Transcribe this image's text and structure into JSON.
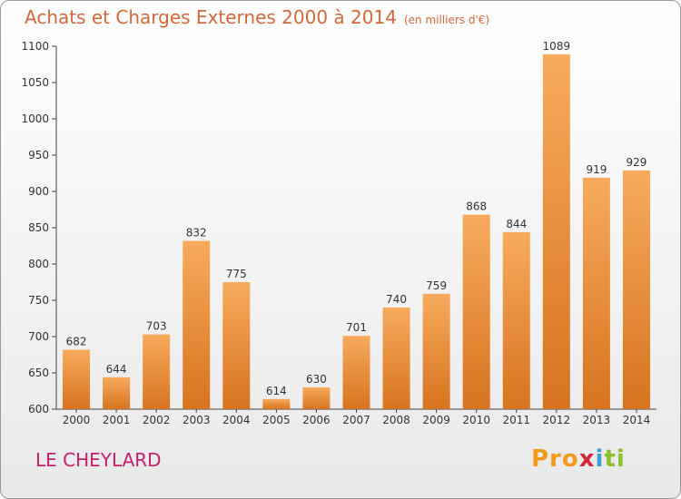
{
  "header": {
    "title": "Achats et Charges Externes 2000 à 2014",
    "unit": "(en milliers d'€)"
  },
  "footer": {
    "place": "LE CHEYLARD",
    "logo_text": "Proxiti",
    "logo_parts": [
      "Pro",
      "x",
      "i",
      "ti"
    ]
  },
  "colors": {
    "title": "#d2683a",
    "place": "#c4206b",
    "bar_light": "#f7ab5d",
    "bar_dark": "#d7731f"
  },
  "chart_data": {
    "type": "bar",
    "title": "Achats et Charges Externes 2000 à 2014",
    "subtitle": "(en milliers d'€)",
    "xlabel": "",
    "ylabel": "",
    "categories": [
      "2000",
      "2001",
      "2002",
      "2003",
      "2004",
      "2005",
      "2006",
      "2007",
      "2008",
      "2009",
      "2010",
      "2011",
      "2012",
      "2013",
      "2014"
    ],
    "values": [
      682,
      644,
      703,
      832,
      775,
      614,
      630,
      701,
      740,
      759,
      868,
      844,
      1089,
      919,
      929
    ],
    "ylim": [
      600,
      1100
    ],
    "yticks": [
      600,
      650,
      700,
      750,
      800,
      850,
      900,
      950,
      1000,
      1050,
      1100
    ],
    "grid": false,
    "data_labels": true
  }
}
